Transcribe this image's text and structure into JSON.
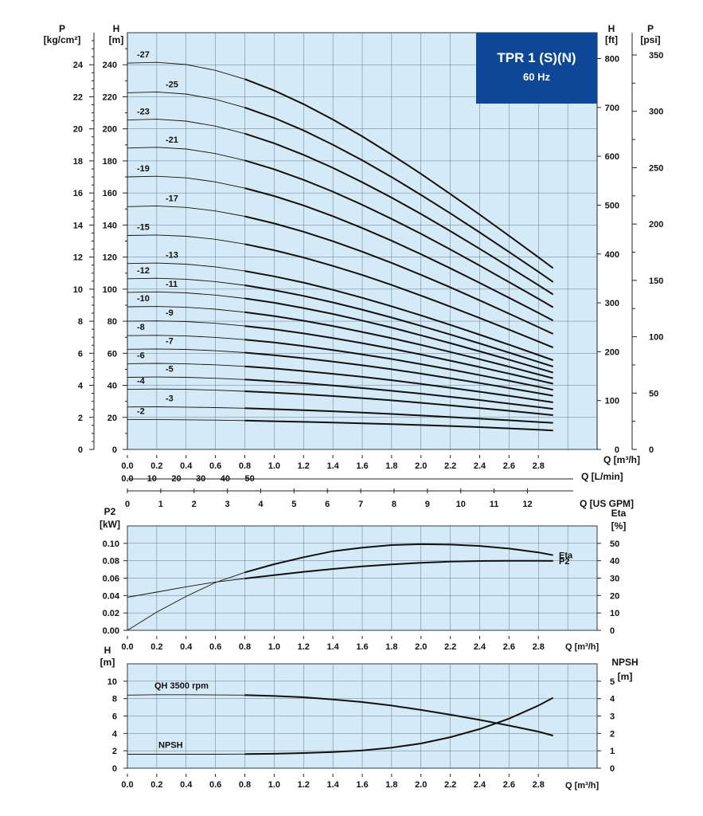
{
  "title": {
    "model": "TPR 1 (S)(N)",
    "frequency": "60 Hz"
  },
  "colors": {
    "title_box": "#0d4796",
    "plot_bg": "#d5eaf7",
    "curve": "#111111"
  },
  "chart_data": [
    {
      "type": "line",
      "name": "head-curves",
      "left_axes": [
        {
          "label": "P",
          "unit": "[kg/cm²]",
          "range": [
            0,
            26
          ],
          "ticks": [
            "0",
            "2",
            "4",
            "6",
            "8",
            "10",
            "12",
            "14",
            "16",
            "18",
            "20",
            "22",
            "24"
          ]
        },
        {
          "label": "H",
          "unit": "[m]",
          "range": [
            0,
            260
          ],
          "ticks": [
            "0",
            "20",
            "40",
            "60",
            "80",
            "100",
            "120",
            "140",
            "160",
            "180",
            "200",
            "220",
            "240"
          ]
        }
      ],
      "right_axes": [
        {
          "label": "H",
          "unit": "[ft]",
          "ticks": [
            "0",
            "100",
            "200",
            "300",
            "400",
            "500",
            "600",
            "700",
            "800"
          ]
        },
        {
          "label": "P",
          "unit": "[psi]",
          "ticks": [
            "0",
            "50",
            "100",
            "150",
            "200",
            "250",
            "300",
            "350"
          ]
        }
      ],
      "x_axes": [
        {
          "label": "Q [m³/h]",
          "range": [
            0,
            3.2
          ],
          "ticks": [
            "0.0",
            "0.2",
            "0.4",
            "0.6",
            "0.8",
            "1.0",
            "1.2",
            "1.4",
            "1.6",
            "1.8",
            "2.0",
            "2.2",
            "2.4",
            "2.6",
            "2.8"
          ]
        },
        {
          "label": "Q [L/min]",
          "ticks": [
            "0.0",
            "10",
            "20",
            "30",
            "40",
            "50"
          ]
        },
        {
          "label": "Q [US GPM]",
          "ticks": [
            "0",
            "1",
            "2",
            "3",
            "4",
            "5",
            "6",
            "7",
            "8",
            "9",
            "10",
            "11",
            "12"
          ]
        }
      ],
      "x": [
        0.0,
        0.2,
        0.4,
        0.6,
        0.8,
        1.0,
        1.2,
        1.4,
        1.6,
        1.8,
        2.0,
        2.2,
        2.4,
        2.6,
        2.8,
        2.9
      ],
      "operating_range": [
        0.8,
        2.9
      ],
      "series": [
        {
          "name": "-2",
          "values": [
            18.6,
            18.6,
            18.5,
            18.3,
            18.0,
            17.6,
            17.2,
            16.8,
            16.3,
            15.8,
            15.2,
            14.6,
            13.9,
            13.1,
            12.3,
            11.8
          ]
        },
        {
          "name": "-3",
          "values": [
            26.5,
            26.6,
            26.4,
            26.1,
            25.7,
            25.1,
            24.5,
            23.8,
            23.0,
            22.1,
            21.2,
            20.2,
            19.2,
            18.2,
            17.1,
            16.6
          ]
        },
        {
          "name": "-4",
          "values": [
            37.5,
            37.7,
            37.5,
            37.0,
            36.3,
            35.4,
            34.4,
            33.3,
            32.0,
            30.6,
            29.1,
            27.5,
            25.8,
            24.1,
            22.3,
            21.4
          ]
        },
        {
          "name": "-5",
          "values": [
            45.0,
            45.2,
            45.0,
            44.4,
            43.6,
            42.5,
            41.3,
            39.9,
            38.3,
            36.6,
            34.8,
            32.8,
            30.8,
            28.6,
            26.4,
            25.3
          ]
        },
        {
          "name": "-6",
          "values": [
            53.5,
            53.7,
            53.4,
            52.8,
            51.8,
            50.5,
            48.9,
            47.2,
            45.3,
            43.2,
            40.9,
            38.5,
            36.0,
            33.4,
            30.7,
            29.4
          ]
        },
        {
          "name": "-7",
          "values": [
            62.5,
            62.7,
            62.4,
            61.6,
            60.4,
            58.8,
            56.9,
            54.8,
            52.5,
            50.0,
            47.3,
            44.4,
            41.4,
            38.3,
            35.1,
            33.5
          ]
        },
        {
          "name": "-8",
          "values": [
            71.0,
            71.2,
            70.8,
            69.9,
            68.5,
            66.7,
            64.5,
            62.0,
            59.3,
            56.4,
            53.2,
            49.9,
            46.4,
            42.8,
            39.1,
            37.2
          ]
        },
        {
          "name": "-9",
          "values": [
            80.0,
            80.2,
            79.8,
            78.7,
            77.0,
            74.9,
            72.4,
            69.5,
            66.3,
            62.9,
            59.2,
            55.4,
            51.4,
            47.3,
            43.1,
            41.0
          ]
        },
        {
          "name": "-10",
          "values": [
            89.0,
            89.2,
            88.7,
            87.5,
            85.6,
            83.2,
            80.3,
            77.0,
            73.3,
            69.4,
            65.2,
            60.8,
            56.3,
            51.6,
            46.8,
            44.4
          ]
        },
        {
          "name": "-11",
          "values": [
            98.0,
            98.3,
            97.7,
            96.3,
            94.2,
            91.5,
            88.2,
            84.5,
            80.4,
            76.0,
            71.2,
            66.3,
            61.2,
            56.0,
            50.6,
            47.9
          ]
        },
        {
          "name": "-12",
          "values": [
            106.5,
            106.8,
            106.2,
            104.7,
            102.4,
            99.4,
            95.8,
            91.7,
            87.2,
            82.3,
            77.1,
            71.7,
            66.1,
            60.4,
            54.6,
            51.7
          ]
        },
        {
          "name": "-13",
          "values": [
            116.0,
            116.3,
            115.6,
            113.9,
            111.3,
            108.0,
            104.1,
            99.6,
            94.6,
            89.3,
            83.6,
            77.7,
            71.6,
            65.3,
            58.9,
            55.7
          ]
        },
        {
          "name": "-15",
          "values": [
            133.5,
            133.8,
            133.0,
            131.1,
            128.1,
            124.3,
            119.7,
            114.5,
            108.8,
            102.6,
            96.0,
            89.1,
            82.0,
            74.7,
            67.3,
            63.6
          ]
        },
        {
          "name": "-17",
          "values": [
            151.5,
            151.9,
            151.0,
            148.8,
            145.4,
            141.0,
            135.8,
            129.9,
            123.4,
            116.4,
            108.9,
            101.1,
            93.0,
            84.7,
            76.3,
            72.1
          ]
        },
        {
          "name": "-19",
          "values": [
            170.0,
            170.4,
            169.4,
            166.9,
            163.0,
            158.1,
            152.2,
            145.5,
            138.1,
            130.2,
            121.8,
            113.0,
            103.9,
            94.6,
            85.2,
            80.4
          ]
        },
        {
          "name": "-21",
          "values": [
            188.0,
            188.5,
            187.4,
            184.6,
            180.3,
            174.8,
            168.2,
            160.8,
            152.6,
            143.8,
            134.5,
            124.8,
            114.7,
            104.4,
            94.0,
            88.7
          ]
        },
        {
          "name": "-23",
          "values": [
            205.5,
            206.0,
            204.8,
            201.7,
            197.0,
            191.0,
            183.8,
            175.7,
            166.7,
            157.1,
            146.9,
            136.2,
            125.2,
            113.9,
            102.5,
            96.7
          ]
        },
        {
          "name": "-25",
          "values": [
            222.5,
            223.0,
            221.7,
            218.4,
            213.3,
            206.8,
            199.0,
            190.1,
            180.4,
            169.9,
            158.8,
            147.3,
            135.4,
            123.2,
            110.8,
            104.5
          ]
        },
        {
          "name": "-27",
          "values": [
            241.0,
            241.5,
            240.1,
            236.5,
            231.0,
            223.9,
            215.4,
            205.8,
            195.3,
            183.9,
            171.9,
            159.4,
            146.5,
            133.3,
            119.9,
            113.1
          ]
        }
      ]
    },
    {
      "type": "line",
      "name": "power-efficiency",
      "left_axis": {
        "label": "P2",
        "unit": "[kW]",
        "range": [
          0,
          0.12
        ],
        "ticks": [
          "0.00",
          "0.02",
          "0.04",
          "0.06",
          "0.08",
          "0.10"
        ]
      },
      "right_axis": {
        "label": "Eta",
        "unit": "[%]",
        "range": [
          0,
          60
        ],
        "ticks": [
          "0",
          "10",
          "20",
          "30",
          "40",
          "50"
        ]
      },
      "x_axis": {
        "label": "Q [m³/h]",
        "range": [
          0,
          3.2
        ],
        "ticks": [
          "0.0",
          "0.2",
          "0.4",
          "0.6",
          "0.8",
          "1.0",
          "1.2",
          "1.4",
          "1.6",
          "1.8",
          "2.0",
          "2.2",
          "2.4",
          "2.6",
          "2.8"
        ]
      },
      "x": [
        0.0,
        0.2,
        0.4,
        0.6,
        0.8,
        1.0,
        1.2,
        1.4,
        1.6,
        1.8,
        2.0,
        2.2,
        2.4,
        2.6,
        2.8,
        2.9
      ],
      "operating_range": [
        0.8,
        2.9
      ],
      "series": [
        {
          "name": "Eta",
          "axis": "right",
          "values": [
            0,
            10.5,
            19.5,
            27.5,
            33.3,
            38.0,
            42.0,
            45.5,
            47.5,
            49.0,
            49.5,
            49.3,
            48.5,
            47.0,
            44.8,
            43.2
          ]
        },
        {
          "name": "P2",
          "axis": "left",
          "values": [
            0.038,
            0.044,
            0.05,
            0.0555,
            0.0595,
            0.0635,
            0.0672,
            0.0705,
            0.0735,
            0.0758,
            0.0777,
            0.079,
            0.0797,
            0.08,
            0.08,
            0.0798
          ]
        }
      ]
    },
    {
      "type": "line",
      "name": "npsh",
      "left_axis": {
        "label": "H",
        "unit": "[m]",
        "range": [
          0,
          12
        ],
        "ticks": [
          "0",
          "2",
          "4",
          "6",
          "8",
          "10"
        ]
      },
      "right_axis": {
        "label": "NPSH",
        "unit": "[m]",
        "range": [
          0,
          6
        ],
        "ticks": [
          "0",
          "1",
          "2",
          "3",
          "4",
          "5"
        ]
      },
      "x_axis": {
        "label": "Q [m³/h]",
        "range": [
          0,
          3.2
        ],
        "ticks": [
          "0.0",
          "0.2",
          "0.4",
          "0.6",
          "0.8",
          "1.0",
          "1.2",
          "1.4",
          "1.6",
          "1.8",
          "2.0",
          "2.2",
          "2.4",
          "2.6",
          "2.8"
        ]
      },
      "x": [
        0.0,
        0.2,
        0.4,
        0.6,
        0.8,
        1.0,
        1.2,
        1.4,
        1.6,
        1.8,
        2.0,
        2.2,
        2.4,
        2.6,
        2.8,
        2.9
      ],
      "operating_range": [
        0.8,
        2.9
      ],
      "series": [
        {
          "name": "QH 3500 rpm",
          "axis": "left",
          "values": [
            8.4,
            8.45,
            8.45,
            8.42,
            8.4,
            8.3,
            8.15,
            7.9,
            7.6,
            7.2,
            6.7,
            6.15,
            5.55,
            4.9,
            4.2,
            3.75
          ]
        },
        {
          "name": "NPSH",
          "axis": "right",
          "values": [
            0.8,
            0.8,
            0.8,
            0.8,
            0.81,
            0.83,
            0.87,
            0.93,
            1.02,
            1.18,
            1.42,
            1.78,
            2.25,
            2.85,
            3.6,
            4.05
          ]
        }
      ]
    }
  ]
}
